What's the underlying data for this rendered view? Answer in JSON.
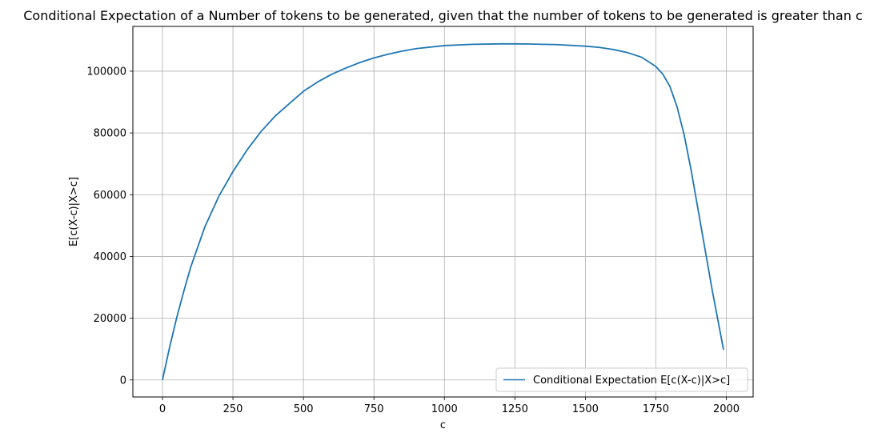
{
  "chart_data": {
    "type": "line",
    "title": "Conditional Expectation of a Number of tokens to be generated, given that the number of tokens to be generated is greater than c",
    "xlabel": "c",
    "ylabel": "E[c(X-c)|X>c]",
    "xlim": [
      -105,
      2095
    ],
    "ylim": [
      -5500,
      114500
    ],
    "xticks": [
      0,
      250,
      500,
      750,
      1000,
      1250,
      1500,
      1750,
      2000
    ],
    "yticks": [
      0,
      20000,
      40000,
      60000,
      80000,
      100000
    ],
    "grid": true,
    "legend_position": "bottom-right",
    "series": [
      {
        "name": "Conditional Expectation E[c(X-c)|X>c]",
        "color": "#1f77b4",
        "x": [
          0,
          25,
          50,
          75,
          100,
          150,
          200,
          250,
          300,
          350,
          400,
          450,
          500,
          550,
          600,
          650,
          700,
          750,
          800,
          850,
          900,
          1000,
          1100,
          1200,
          1250,
          1300,
          1400,
          1500,
          1550,
          1600,
          1650,
          1700,
          1750,
          1775,
          1800,
          1825,
          1850,
          1875,
          1900,
          1925,
          1950,
          1975,
          1990
        ],
        "y": [
          0,
          10500,
          20000,
          28500,
          36500,
          49500,
          59500,
          67500,
          74500,
          80500,
          85500,
          89500,
          93500,
          96500,
          99000,
          101000,
          102800,
          104300,
          105500,
          106500,
          107300,
          108300,
          108700,
          108850,
          108850,
          108800,
          108600,
          108100,
          107700,
          107000,
          106000,
          104500,
          101500,
          99000,
          95000,
          88500,
          79500,
          68000,
          55000,
          42000,
          29000,
          17000,
          9800
        ]
      }
    ]
  }
}
